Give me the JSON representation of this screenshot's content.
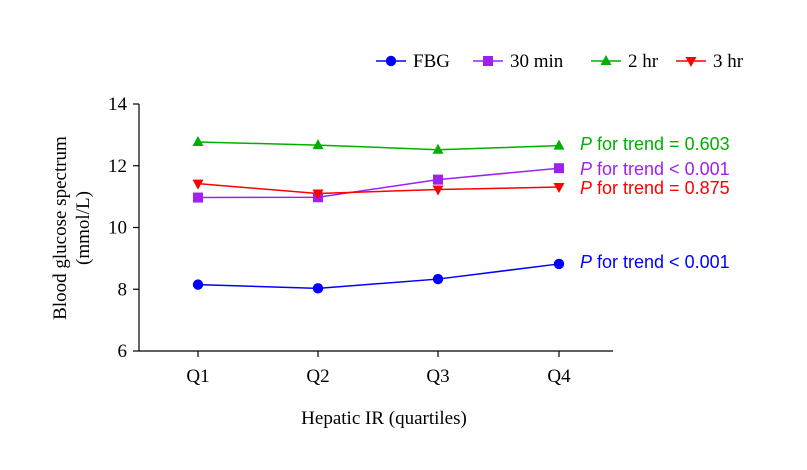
{
  "chart_data": {
    "type": "line",
    "title": "",
    "xlabel": "Hepatic IR (quartiles)",
    "ylabel_lines": [
      "Blood glucose spectrum",
      "(mmol/L)"
    ],
    "categories": [
      "Q1",
      "Q2",
      "Q3",
      "Q4"
    ],
    "ylim": [
      6,
      14
    ],
    "yticks": [
      6,
      8,
      10,
      12,
      14
    ],
    "grid": false,
    "legend_position": "top-right",
    "series": [
      {
        "name": "FBG",
        "color": "#0000ff",
        "marker": "circle",
        "values": [
          8.15,
          8.03,
          8.33,
          8.82
        ],
        "annotation": {
          "p": "P",
          "text": " for trend < 0.001"
        }
      },
      {
        "name": "30 min",
        "color": "#a020f0",
        "marker": "square",
        "values": [
          10.97,
          10.98,
          11.55,
          11.92
        ],
        "annotation": {
          "p": "P",
          "text": " for trend < 0.001"
        }
      },
      {
        "name": "2 hr",
        "color": "#00b000",
        "marker": "triangle-up",
        "values": [
          12.77,
          12.67,
          12.52,
          12.65
        ],
        "annotation": {
          "p": "P",
          "text": " for trend = 0.603"
        }
      },
      {
        "name": "3 hr",
        "color": "#ff0000",
        "marker": "triangle-down",
        "values": [
          11.42,
          11.1,
          11.23,
          11.31
        ],
        "annotation": {
          "p": "P",
          "text": " for trend = 0.875"
        }
      }
    ]
  }
}
